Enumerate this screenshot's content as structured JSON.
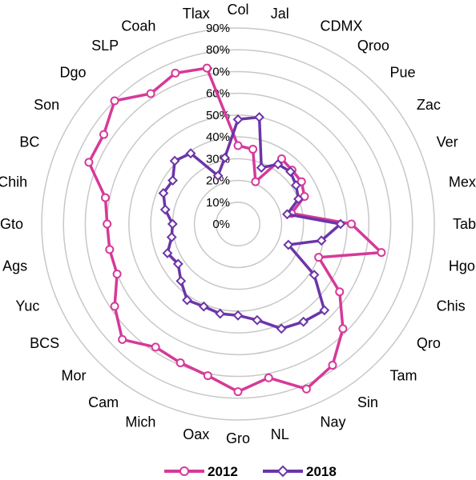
{
  "chart_data": {
    "type": "radar",
    "categories": [
      "Col",
      "Jal",
      "CDMX",
      "Qroo",
      "Pue",
      "Zac",
      "Ver",
      "Mex",
      "Tab",
      "Hgo",
      "Chis",
      "Qro",
      "Tam",
      "Sin",
      "Nay",
      "NL",
      "Gro",
      "Oax",
      "Mich",
      "Cam",
      "Mor",
      "BCS",
      "Yuc",
      "Ags",
      "Gto",
      "Chih",
      "BC",
      "Son",
      "Dgo",
      "SLP",
      "Coah",
      "Tlax"
    ],
    "r_ticks": [
      "0%",
      "10%",
      "20%",
      "30%",
      "40%",
      "50%",
      "60%",
      "70%",
      "80%",
      "90%"
    ],
    "rlim": [
      0,
      90
    ],
    "grid": true,
    "legend_position": "bottom",
    "series": [
      {
        "name": "2012",
        "color": "#d6399a",
        "marker": "circle",
        "values": [
          36,
          35,
          21,
          36,
          35,
          35,
          33,
          25,
          52,
          67,
          40,
          56,
          68,
          78,
          82,
          72,
          77,
          71,
          69,
          68,
          75,
          68,
          60,
          60,
          60,
          62,
          74,
          74,
          80,
          72,
          75,
          73
        ]
      },
      {
        "name": "2018",
        "color": "#6b35a8",
        "marker": "diamond",
        "values": [
          48,
          50,
          28,
          33,
          34,
          32,
          30,
          23,
          47,
          39,
          25,
          42,
          56,
          54,
          52,
          45,
          42,
          42,
          41,
          42,
          37,
          33,
          35,
          31,
          30,
          34,
          37,
          36,
          41,
          39,
          24,
          31
        ]
      }
    ]
  }
}
